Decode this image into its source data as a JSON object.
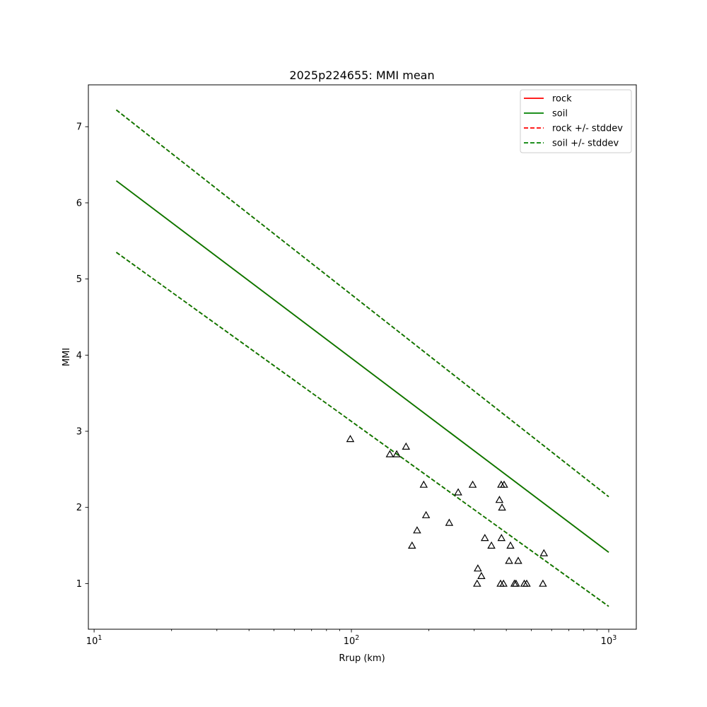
{
  "chart_data": {
    "type": "scatter",
    "title": "2025p224655: MMI mean",
    "xlabel": "Rrup (km)",
    "ylabel": "MMI",
    "xscale": "log",
    "xlim": [
      9.5,
      1280
    ],
    "ylim": [
      0.4,
      7.55
    ],
    "x_ticks": [
      {
        "value": 10,
        "base": "10",
        "exp": "1"
      },
      {
        "value": 100,
        "base": "10",
        "exp": "2"
      },
      {
        "value": 1000,
        "base": "10",
        "exp": "3"
      }
    ],
    "y_ticks": [
      {
        "value": 1,
        "label": "1"
      },
      {
        "value": 2,
        "label": "2"
      },
      {
        "value": 3,
        "label": "3"
      },
      {
        "value": 4,
        "label": "4"
      },
      {
        "value": 5,
        "label": "5"
      },
      {
        "value": 6,
        "label": "6"
      },
      {
        "value": 7,
        "label": "7"
      }
    ],
    "grid": false,
    "legend_position": "top-right",
    "series": [
      {
        "name": "rock",
        "color": "#ff0000",
        "style": "solid",
        "x": [
          12.2,
          1000
        ],
        "y": [
          6.29,
          1.41
        ]
      },
      {
        "name": "soil",
        "color": "#008000",
        "style": "solid",
        "x": [
          12.2,
          1000
        ],
        "y": [
          6.29,
          1.41
        ]
      },
      {
        "name": "rock +/- stddev",
        "color": "#ff0000",
        "style": "dashed",
        "lines": [
          {
            "x": [
              12.2,
              1000
            ],
            "y": [
              7.22,
              2.14
            ]
          },
          {
            "x": [
              12.2,
              1000
            ],
            "y": [
              5.35,
              0.7
            ]
          }
        ]
      },
      {
        "name": "soil +/- stddev",
        "color": "#008000",
        "style": "dashed",
        "lines": [
          {
            "x": [
              12.2,
              1000
            ],
            "y": [
              7.22,
              2.14
            ]
          },
          {
            "x": [
              12.2,
              1000
            ],
            "y": [
              5.35,
              0.7
            ]
          }
        ]
      }
    ],
    "observations": {
      "marker": "triangle",
      "color": "#000000",
      "x": [
        99,
        141,
        150,
        163,
        172,
        180,
        191,
        195,
        240,
        260,
        296,
        308,
        310,
        320,
        330,
        350,
        376,
        380,
        382,
        383,
        385,
        390,
        392,
        410,
        415,
        430,
        436,
        445,
        470,
        480,
        555,
        560
      ],
      "y": [
        2.9,
        2.7,
        2.7,
        2.8,
        1.5,
        1.7,
        2.3,
        1.9,
        1.8,
        2.2,
        2.3,
        1.0,
        1.2,
        1.1,
        1.6,
        1.5,
        2.1,
        1.0,
        2.3,
        1.6,
        2.0,
        1.0,
        2.3,
        1.3,
        1.5,
        1.0,
        1.0,
        1.3,
        1.0,
        1.0,
        1.0,
        1.4
      ]
    }
  }
}
